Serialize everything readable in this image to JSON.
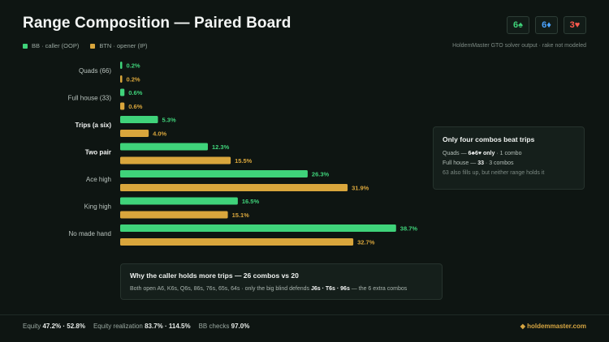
{
  "title": "Range Composition — Paired Board",
  "board_cards": [
    {
      "label": "6♠",
      "color": "#3fd37a"
    },
    {
      "label": "6♦",
      "color": "#4aa3ff"
    },
    {
      "label": "3♥",
      "color": "#ff5a4e"
    }
  ],
  "legend": [
    {
      "label": "BB · caller (OOP)",
      "color": "#3fd37a"
    },
    {
      "label": "BTN · opener (IP)",
      "color": "#d9a63c"
    }
  ],
  "source_note": "HoldemMaster GTO solver output · rake not modeled",
  "chart_data": {
    "type": "bar",
    "orientation": "horizontal",
    "categories": [
      "Quads (66)",
      "Full house (33)",
      "Trips (a six)",
      "Two pair",
      "Ace high",
      "King high",
      "No made hand"
    ],
    "bold_categories": [
      "Trips (a six)",
      "Two pair"
    ],
    "series": [
      {
        "name": "BB · caller (OOP)",
        "color": "#3fd37a",
        "values": [
          0.2,
          0.6,
          5.3,
          12.3,
          26.3,
          16.5,
          38.7
        ],
        "labels": [
          "0.2%",
          "0.6%",
          "5.3%",
          "12.3%",
          "26.3%",
          "16.5%",
          "38.7%"
        ]
      },
      {
        "name": "BTN · opener (IP)",
        "color": "#d9a63c",
        "values": [
          0.2,
          0.6,
          4.0,
          15.5,
          31.9,
          15.1,
          32.7
        ],
        "labels": [
          "0.2%",
          "0.6%",
          "4.0%",
          "15.5%",
          "31.9%",
          "15.1%",
          "32.7%"
        ]
      }
    ],
    "xlim": [
      0,
      40
    ],
    "grid": false
  },
  "callout": {
    "title": "Only four combos beat trips",
    "line1_prefix": "Quads — ",
    "line1_bold": "6♣6♥ only",
    "line1_suffix": " · 1 combo",
    "line2_prefix": "Full house — ",
    "line2_bold": "33",
    "line2_suffix": " · 3 combos",
    "note": "63 also fills up, but neither range holds it"
  },
  "explain": {
    "title": "Why the caller holds more trips — 26 combos vs 20",
    "text_prefix": "Both open A6, K6s, Q6s, 86s, 76s, 65s, 64s  ·  only the big blind defends ",
    "text_bold": "J6s · T6s · 96s",
    "text_suffix": " — the 6 extra combos"
  },
  "footer": {
    "equity_label": "Equity",
    "equity_value": "47.2% · 52.8%",
    "realization_label": "Equity realization",
    "realization_value": "83.7% · 114.5%",
    "checks_label": "BB checks",
    "checks_value": "97.0%"
  },
  "brand": "◆ holdemmaster.com"
}
